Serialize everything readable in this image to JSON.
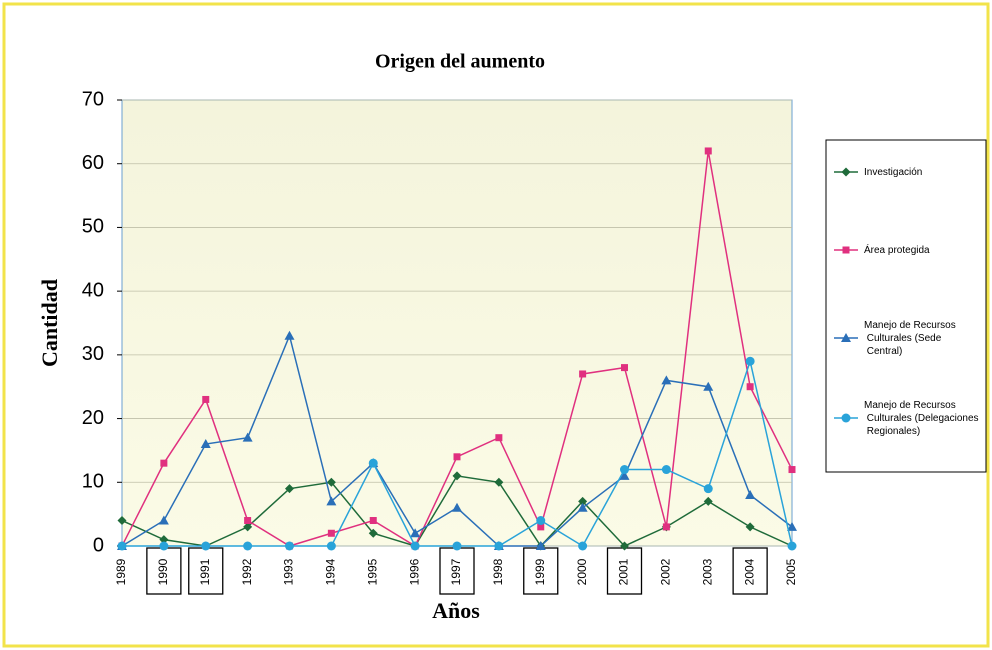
{
  "chart_data": {
    "type": "line",
    "title": "Origen del aumento",
    "x_label": "Años",
    "y_label": "Cantidad",
    "categories": [
      "1989",
      "1990",
      "1991",
      "1992",
      "1993",
      "1994",
      "1995",
      "1996",
      "1997",
      "1998",
      "1999",
      "2000",
      "2001",
      "2002",
      "2003",
      "2004",
      "2005"
    ],
    "highlight": [
      "1990",
      "1991",
      "1997",
      "1999",
      "2001",
      "2004"
    ],
    "series": [
      {
        "name": "Investigación",
        "color": "#1f6b3a",
        "marker": "diamond",
        "values": [
          4,
          1,
          0,
          3,
          9,
          10,
          2,
          0,
          11,
          10,
          0,
          7,
          0,
          3,
          7,
          3,
          0
        ]
      },
      {
        "name": "Área protegida",
        "color": "#e0307f",
        "marker": "square",
        "values": [
          0,
          13,
          23,
          4,
          0,
          2,
          4,
          0,
          14,
          17,
          3,
          27,
          28,
          3,
          62,
          25,
          12
        ]
      },
      {
        "name": "Manejo de Recursos Culturales (Sede Central)",
        "color": "#2a6fb8",
        "marker": "triangle",
        "values": [
          0,
          4,
          16,
          17,
          33,
          7,
          13,
          2,
          6,
          0,
          0,
          6,
          11,
          26,
          25,
          8,
          3
        ]
      },
      {
        "name": "Manejo de Recursos Culturales (Delegaciones Regionales)",
        "color": "#29a3d9",
        "marker": "circle",
        "values": [
          0,
          0,
          0,
          0,
          0,
          0,
          13,
          0,
          0,
          0,
          4,
          0,
          12,
          12,
          9,
          29,
          0
        ]
      }
    ],
    "ylim": [
      0,
      70
    ],
    "yticks": [
      0,
      10,
      20,
      30,
      40,
      50,
      60,
      70
    ],
    "grid": true
  }
}
